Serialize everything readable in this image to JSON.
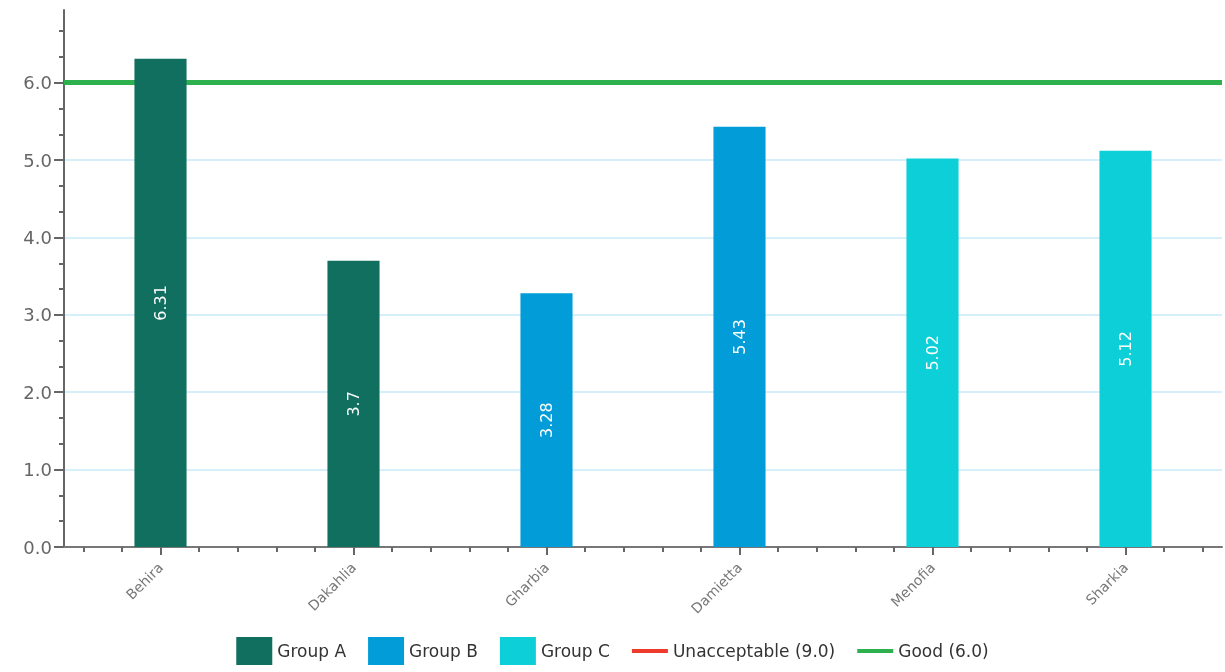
{
  "chart_data": {
    "type": "bar",
    "categories": [
      "Behira",
      "Dakahlia",
      "Gharbia",
      "Damietta",
      "Menofia",
      "Sharkia"
    ],
    "series": [
      {
        "name": "Group A",
        "color": "#116f60",
        "values": [
          6.31,
          3.7,
          null,
          null,
          null,
          null
        ]
      },
      {
        "name": "Group B",
        "color": "#029dd8",
        "values": [
          null,
          null,
          3.28,
          5.43,
          null,
          null
        ]
      },
      {
        "name": "Group C",
        "color": "#0ccfd8",
        "values": [
          null,
          null,
          null,
          null,
          5.02,
          5.12
        ]
      },
      {
        "name": "Unacceptable (9.0)",
        "type": "line",
        "color": "#ee3b2c",
        "values": [
          null,
          null,
          null,
          null,
          null,
          null
        ]
      }
    ],
    "stacked": true,
    "data_labels": true,
    "ylim": [
      0,
      6.94
    ],
    "yticks": [
      {
        "value": 0,
        "label": "0.0"
      },
      {
        "value": 1,
        "label": "1.0"
      },
      {
        "value": 2,
        "label": "2.0"
      },
      {
        "value": 3,
        "label": "3.0"
      },
      {
        "value": 4,
        "label": "4.0"
      },
      {
        "value": 5,
        "label": "5.0"
      },
      {
        "value": 6,
        "label": "6.0"
      }
    ],
    "grid": "y",
    "legend": "bottom",
    "ref_lines": [
      {
        "axis": "y",
        "value": 6,
        "label": "Good (6.0)",
        "color": "#2eb04f"
      }
    ]
  }
}
